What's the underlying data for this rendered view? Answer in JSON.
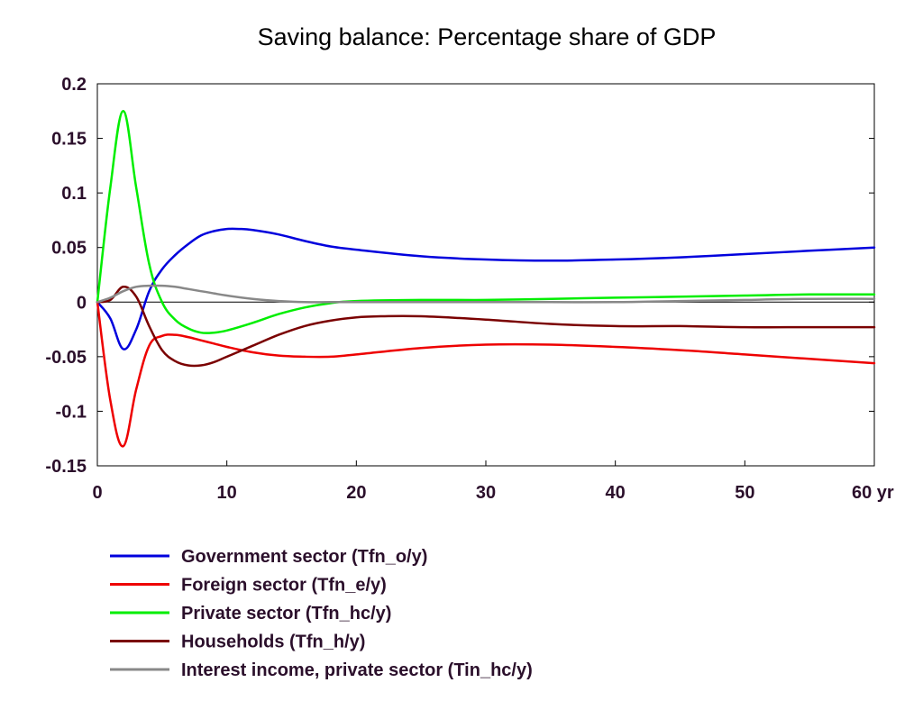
{
  "chart_data": {
    "type": "line",
    "title": "Saving balance: Percentage share of GDP",
    "xlabel": "",
    "ylabel": "",
    "x_unit": "yr",
    "xlim": [
      0,
      60
    ],
    "ylim": [
      -0.15,
      0.2
    ],
    "x_ticks": [
      {
        "value": 0,
        "label": "0"
      },
      {
        "value": 10,
        "label": "10"
      },
      {
        "value": 20,
        "label": "20"
      },
      {
        "value": 30,
        "label": "30"
      },
      {
        "value": 40,
        "label": "40"
      },
      {
        "value": 50,
        "label": "50"
      },
      {
        "value": 60,
        "label": "60 yr"
      }
    ],
    "y_ticks": [
      {
        "value": 0.2,
        "label": "0.2"
      },
      {
        "value": 0.15,
        "label": "0.15"
      },
      {
        "value": 0.1,
        "label": "0.1"
      },
      {
        "value": 0.05,
        "label": "0.05"
      },
      {
        "value": 0,
        "label": "0"
      },
      {
        "value": -0.05,
        "label": "-0.05"
      },
      {
        "value": -0.1,
        "label": "-0.1"
      },
      {
        "value": -0.15,
        "label": "-0.15"
      }
    ],
    "grid": false,
    "zero_line": true,
    "legend_position": "bottom",
    "series": [
      {
        "name": "Government sector (Tfn_o/y)",
        "color": "#0000dd",
        "x": [
          0,
          1,
          2,
          3,
          4,
          5,
          6,
          7,
          8,
          9,
          10,
          11,
          12,
          14,
          16,
          18,
          20,
          25,
          30,
          35,
          40,
          45,
          50,
          55,
          60
        ],
        "y": [
          0,
          -0.015,
          -0.043,
          -0.025,
          0.01,
          0.03,
          0.043,
          0.053,
          0.061,
          0.065,
          0.067,
          0.067,
          0.066,
          0.062,
          0.056,
          0.051,
          0.048,
          0.042,
          0.039,
          0.038,
          0.039,
          0.041,
          0.044,
          0.047,
          0.05
        ]
      },
      {
        "name": "Foreign sector (Tfn_e/y)",
        "color": "#ee0000",
        "x": [
          0,
          1,
          2,
          3,
          4,
          5,
          6,
          7,
          8,
          9,
          10,
          12,
          14,
          16,
          18,
          20,
          25,
          30,
          35,
          40,
          45,
          50,
          55,
          60
        ],
        "y": [
          0,
          -0.09,
          -0.132,
          -0.08,
          -0.04,
          -0.031,
          -0.03,
          -0.032,
          -0.035,
          -0.038,
          -0.041,
          -0.046,
          -0.049,
          -0.05,
          -0.05,
          -0.048,
          -0.042,
          -0.039,
          -0.039,
          -0.041,
          -0.044,
          -0.048,
          -0.052,
          -0.056
        ]
      },
      {
        "name": "Private sector (Tfn_hc/y)",
        "color": "#00ee00",
        "x": [
          0,
          1,
          2,
          3,
          4,
          5,
          6,
          7,
          8,
          9,
          10,
          12,
          14,
          16,
          18,
          20,
          25,
          30,
          35,
          40,
          45,
          50,
          55,
          60
        ],
        "y": [
          0,
          0.105,
          0.175,
          0.105,
          0.035,
          0.0,
          -0.016,
          -0.024,
          -0.028,
          -0.028,
          -0.026,
          -0.019,
          -0.011,
          -0.005,
          -0.001,
          0.001,
          0.002,
          0.002,
          0.003,
          0.004,
          0.005,
          0.006,
          0.007,
          0.007
        ]
      },
      {
        "name": "Households (Tfn_h/y)",
        "color": "#7a0000",
        "x": [
          0,
          1,
          2,
          3,
          4,
          5,
          6,
          7,
          8,
          9,
          10,
          12,
          14,
          16,
          18,
          20,
          22,
          25,
          30,
          35,
          40,
          45,
          50,
          55,
          60
        ],
        "y": [
          0,
          0.002,
          0.014,
          0.005,
          -0.022,
          -0.044,
          -0.054,
          -0.058,
          -0.058,
          -0.055,
          -0.05,
          -0.04,
          -0.03,
          -0.022,
          -0.017,
          -0.014,
          -0.013,
          -0.013,
          -0.016,
          -0.02,
          -0.022,
          -0.022,
          -0.023,
          -0.023,
          -0.023
        ]
      },
      {
        "name": "Interest income, private sector (Tin_hc/y)",
        "color": "#888888",
        "x": [
          0,
          1,
          2,
          3,
          4,
          5,
          6,
          7,
          8,
          9,
          10,
          12,
          14,
          16,
          18,
          20,
          25,
          30,
          35,
          40,
          45,
          50,
          55,
          60
        ],
        "y": [
          0,
          0.004,
          0.01,
          0.014,
          0.015,
          0.015,
          0.014,
          0.012,
          0.01,
          0.008,
          0.006,
          0.003,
          0.001,
          0.0,
          0.0,
          0.0,
          0.0,
          0.0,
          0.0,
          0.0,
          0.001,
          0.002,
          0.003,
          0.003
        ]
      }
    ]
  }
}
